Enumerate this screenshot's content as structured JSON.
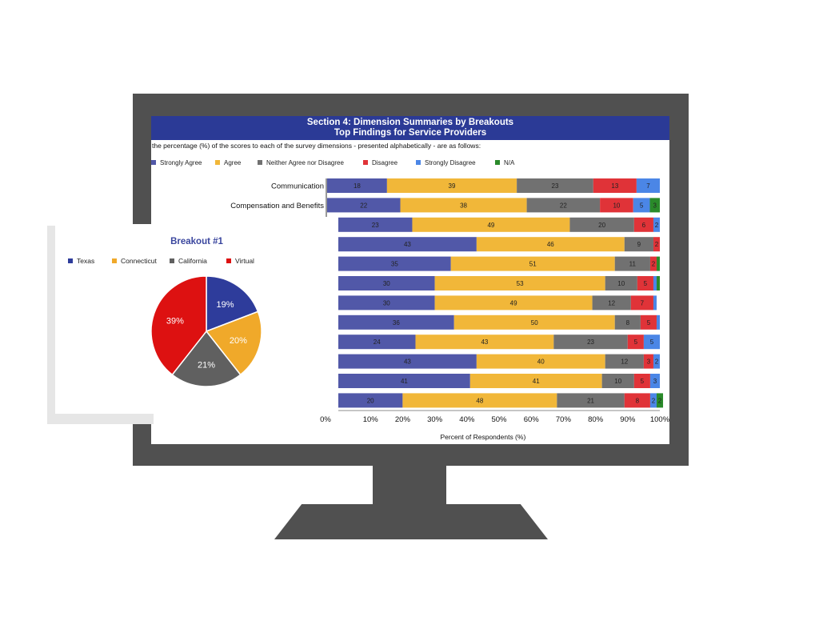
{
  "chart_data": [
    {
      "type": "bar",
      "stacked": true,
      "orientation": "horizontal",
      "title": "Section 4: Dimension Summaries by Breakouts",
      "subtitle": "Top Findings for Service Providers",
      "intro": "the percentage (%) of the scores to each of the survey dimensions - presented alphabetically - are as follows:",
      "categories": [
        "Communication",
        "Compensation and Benefits",
        "",
        "",
        "",
        "",
        "",
        "",
        "",
        "",
        "",
        ""
      ],
      "series": [
        {
          "name": "Strongly Agree",
          "color": "#5158a8",
          "values": [
            18,
            22,
            23,
            43,
            35,
            30,
            30,
            36,
            24,
            43,
            41,
            20
          ]
        },
        {
          "name": "Agree",
          "color": "#f1b739",
          "values": [
            39,
            38,
            49,
            46,
            51,
            53,
            49,
            50,
            43,
            40,
            41,
            48
          ]
        },
        {
          "name": "Neither Agree nor Disagree",
          "color": "#717171",
          "values": [
            23,
            22,
            20,
            9,
            11,
            10,
            12,
            8,
            23,
            12,
            10,
            21
          ]
        },
        {
          "name": "Disagree",
          "color": "#e03338",
          "values": [
            13,
            10,
            6,
            2,
            2,
            5,
            7,
            5,
            5,
            3,
            5,
            8
          ]
        },
        {
          "name": "Strongly Disagree",
          "color": "#4b86e6",
          "values": [
            7,
            5,
            2,
            0,
            0,
            1,
            1,
            1,
            5,
            2,
            3,
            2
          ]
        },
        {
          "name": "N/A",
          "color": "#2a8a2a",
          "values": [
            0,
            3,
            0,
            0,
            1,
            1,
            0,
            0,
            0,
            0,
            0,
            2
          ]
        }
      ],
      "xlabel": "Percent of Respondents (%)",
      "xlim": [
        0,
        100
      ],
      "xticks": [
        "0%",
        "10%",
        "20%",
        "30%",
        "40%",
        "50%",
        "60%",
        "70%",
        "80%",
        "90%",
        "100%"
      ],
      "legend": "top"
    },
    {
      "type": "pie",
      "title": "Breakout #1",
      "categories": [
        "Texas",
        "Connecticut",
        "California",
        "Virtual"
      ],
      "values": [
        19,
        20,
        21,
        39
      ],
      "labels": [
        "19%",
        "20%",
        "21%",
        "39%"
      ],
      "colors": [
        "#2e3c9b",
        "#f0a92a",
        "#606060",
        "#dd1111"
      ],
      "legend": "top"
    }
  ]
}
